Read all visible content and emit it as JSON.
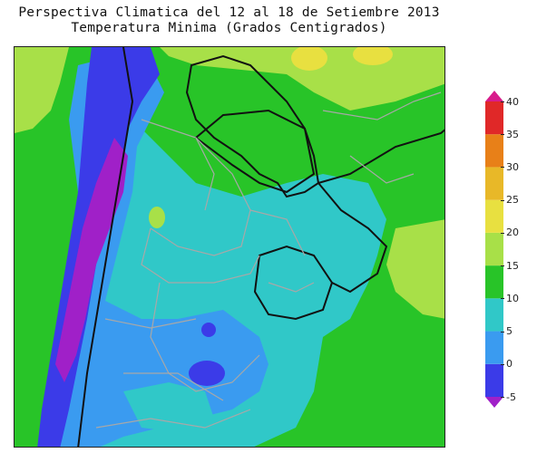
{
  "title_line1": "Perspectiva Climatica del 12 al 18 de Setiembre 2013",
  "title_line2": "Temperatura Minima (Grados Centigrados)",
  "colors": {
    "lt_m5": "#a020c8",
    "m5_0": "#3b3be8",
    "0_5": "#3a9bf0",
    "5_10": "#30c8c8",
    "10_15": "#28c428",
    "15_20": "#a8e048",
    "20_25": "#e8e040",
    "25_30": "#e8b828",
    "30_35": "#e88018",
    "35_40": "#e02828",
    "gt_40": "#d81c8c"
  },
  "colorbar": {
    "ticks": [
      "40",
      "35",
      "30",
      "25",
      "20",
      "15",
      "10",
      "5",
      "0",
      "-5"
    ],
    "tick_values": [
      40,
      35,
      30,
      25,
      20,
      15,
      10,
      5,
      0,
      -5
    ],
    "bands": [
      {
        "from": -5,
        "to": 0,
        "color": "#3b3be8"
      },
      {
        "from": 0,
        "to": 5,
        "color": "#3a9bf0"
      },
      {
        "from": 5,
        "to": 10,
        "color": "#30c8c8"
      },
      {
        "from": 10,
        "to": 15,
        "color": "#28c428"
      },
      {
        "from": 15,
        "to": 20,
        "color": "#a8e048"
      },
      {
        "from": 20,
        "to": 25,
        "color": "#e8e040"
      },
      {
        "from": 25,
        "to": 30,
        "color": "#e8b828"
      },
      {
        "from": 30,
        "to": 35,
        "color": "#e88018"
      },
      {
        "from": 35,
        "to": 40,
        "color": "#e02828"
      }
    ],
    "min": -5,
    "max": 40
  }
}
